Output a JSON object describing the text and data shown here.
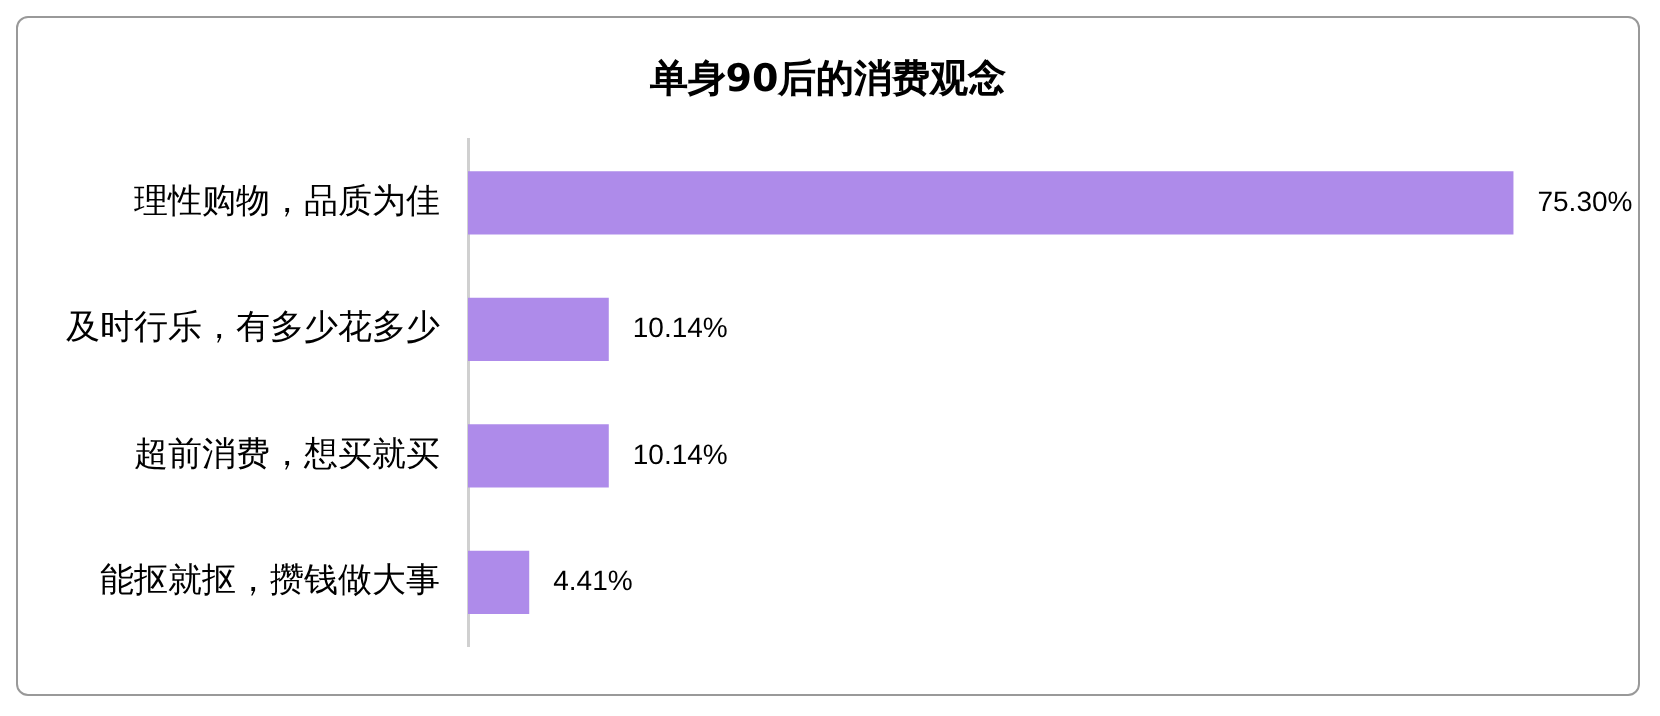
{
  "chart_data": {
    "type": "bar",
    "orientation": "horizontal",
    "title": "单身90后的消费观念",
    "categories": [
      "理性购物，品质为佳",
      "及时行乐，有多少花多少",
      "超前消费，想买就买",
      "能抠就抠，攒钱做大事"
    ],
    "values": [
      75.3,
      10.14,
      10.14,
      4.41
    ],
    "value_labels": [
      "75.30%",
      "10.14%",
      "10.14%",
      "4.41%"
    ],
    "color": "#ae8bea",
    "legend": false
  }
}
